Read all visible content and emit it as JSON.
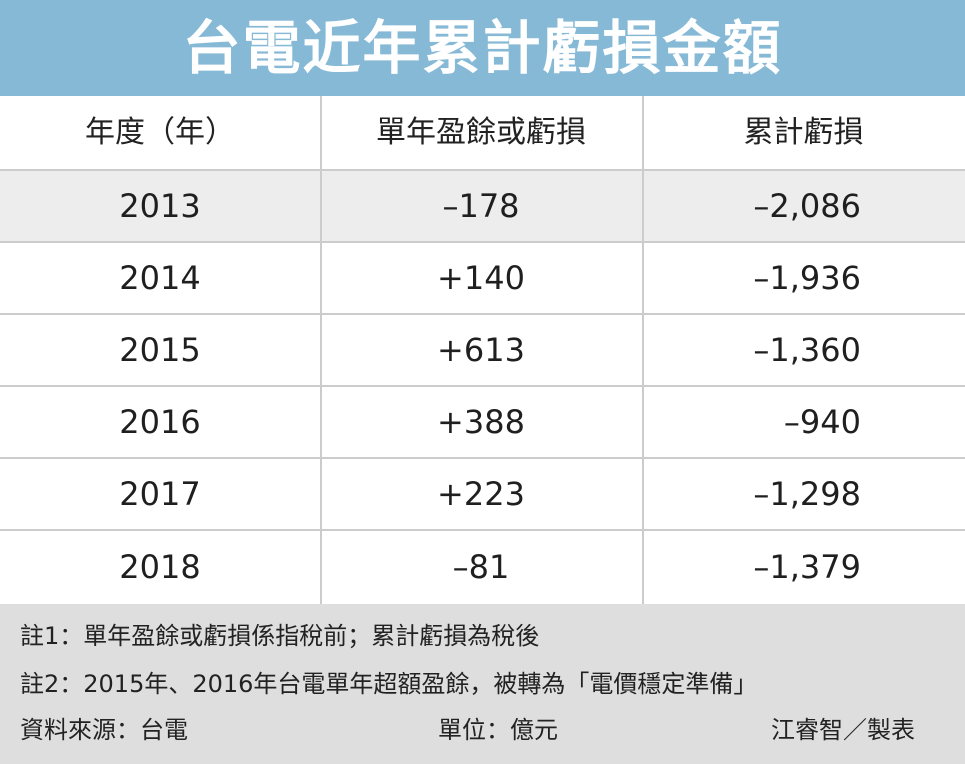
{
  "title": "台電近年累計虧損金額",
  "table": {
    "headers": [
      "年度（年）",
      "單年盈餘或虧損",
      "累計虧損"
    ],
    "rows": [
      {
        "year": "2013",
        "annual": "–178",
        "cumulative": "–2,086"
      },
      {
        "year": "2014",
        "annual": "+140",
        "cumulative": "–1,936"
      },
      {
        "year": "2015",
        "annual": "+613",
        "cumulative": "–1,360"
      },
      {
        "year": "2016",
        "annual": "+388",
        "cumulative": "–940"
      },
      {
        "year": "2017",
        "annual": "+223",
        "cumulative": "–1,298"
      },
      {
        "year": "2018",
        "annual": "–81",
        "cumulative": "–1,379"
      }
    ]
  },
  "notes": {
    "note1": "註1：單年盈餘或虧損係指稅前；累計虧損為稅後",
    "note2": "註2：2015年、2016年台電單年超額盈餘，被轉為「電價穩定準備」",
    "source": "資料來源：台電",
    "unit": "單位：億元",
    "credit": "江睿智／製表"
  },
  "colors": {
    "title_background": "#86b9d6",
    "title_text": "#ffffff",
    "shaded_row": "#ededed",
    "notes_background": "#dedede",
    "grid_line": "#cccccc"
  }
}
